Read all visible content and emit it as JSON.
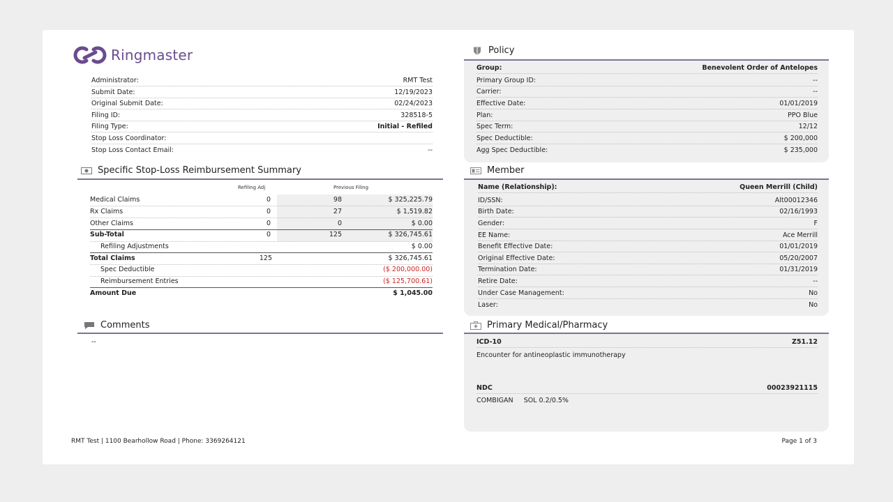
{
  "brand": {
    "name": "Ringmaster",
    "color": "#6a4c8f"
  },
  "filing": {
    "rows": [
      {
        "label": "Administrator:",
        "value": "RMT Test"
      },
      {
        "label": "Submit Date:",
        "value": "12/19/2023"
      },
      {
        "label": "Original Submit Date:",
        "value": "02/24/2023"
      },
      {
        "label": "Filing ID:",
        "value": "328518-5"
      },
      {
        "label": "Filing Type:",
        "value": "Initial - Refiled"
      },
      {
        "label": "Stop Loss Coordinator:",
        "value": ""
      },
      {
        "label": "Stop Loss Contact Email:",
        "value": "--"
      }
    ]
  },
  "summary": {
    "title": "Specific Stop-Loss Reimbursement Summary",
    "col_refiling": "Refiling Adj",
    "col_previous": "Previous Filing",
    "rows": [
      {
        "label": "Medical Claims",
        "refiling": "0",
        "count": "98",
        "amount": "$ 325,225.79"
      },
      {
        "label": "Rx Claims",
        "refiling": "0",
        "count": "27",
        "amount": "$ 1,519.82"
      },
      {
        "label": "Other Claims",
        "refiling": "0",
        "count": "0",
        "amount": "$ 0.00"
      },
      {
        "label": "Sub-Total",
        "refiling": "0",
        "count": "125",
        "amount": "$ 326,745.61"
      }
    ],
    "refiling_adjustments": {
      "label": "Refiling Adjustments",
      "amount": "$ 0.00"
    },
    "total_claims": {
      "label": "Total Claims",
      "count": "125",
      "amount": "$ 326,745.61"
    },
    "spec_deductible": {
      "label": "Spec Deductible",
      "amount": "($ 200,000.00)"
    },
    "reimbursement_entries": {
      "label": "Reimbursement Entries",
      "amount": "($ 125,700.61)"
    },
    "amount_due": {
      "label": "Amount Due",
      "amount": "$ 1,045.00"
    }
  },
  "comments": {
    "title": "Comments",
    "text": "--"
  },
  "policy": {
    "title": "Policy",
    "rows": [
      {
        "label": "Group:",
        "value": "Benevolent Order of Antelopes"
      },
      {
        "label": "Primary Group ID:",
        "value": "--"
      },
      {
        "label": "Carrier:",
        "value": "--"
      },
      {
        "label": "Effective Date:",
        "value": "01/01/2019"
      },
      {
        "label": "Plan:",
        "value": "PPO Blue"
      },
      {
        "label": "Spec Term:",
        "value": "12/12"
      },
      {
        "label": "Spec Deductible:",
        "value": "$ 200,000"
      },
      {
        "label": "Agg Spec Deductible:",
        "value": "$ 235,000"
      }
    ]
  },
  "member": {
    "title": "Member",
    "rows": [
      {
        "label": "Name (Relationship):",
        "value": "Queen Merrill (Child)"
      },
      {
        "label": "ID/SSN:",
        "value": "Alt00012346"
      },
      {
        "label": "Birth Date:",
        "value": "02/16/1993"
      },
      {
        "label": "Gender:",
        "value": "F"
      },
      {
        "label": "EE Name:",
        "value": "Ace Merrill"
      },
      {
        "label": "Benefit Effective Date:",
        "value": "01/01/2019"
      },
      {
        "label": "Original Effective Date:",
        "value": "05/20/2007"
      },
      {
        "label": "Termination Date:",
        "value": "01/31/2019"
      },
      {
        "label": "Retire Date:",
        "value": "--"
      },
      {
        "label": "Under Case Management:",
        "value": "No"
      },
      {
        "label": "Laser:",
        "value": "No"
      }
    ]
  },
  "primary": {
    "title": "Primary Medical/Pharmacy",
    "icd_label": "ICD-10",
    "icd_code": "Z51.12",
    "icd_desc": "Encounter for antineoplastic immunotherapy",
    "ndc_label": "NDC",
    "ndc_code": "00023921115",
    "ndc_desc": "COMBIGAN     SOL 0.2/0.5%"
  },
  "footer": {
    "left": "RMT Test | 1100 Bearhollow Road | Phone: 3369264121",
    "right": "Page 1 of 3"
  },
  "colors": {
    "accent_rule": "#7b7394",
    "negative": "#cc2222",
    "panel_bg": "#efefef"
  }
}
